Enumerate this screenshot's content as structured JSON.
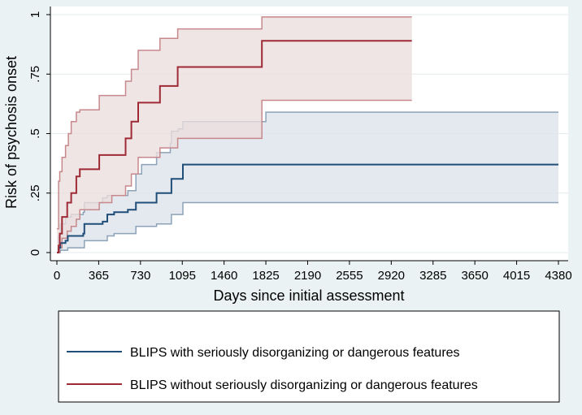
{
  "chart_data": {
    "type": "line",
    "title": "",
    "xlabel": "Days since initial assessment",
    "ylabel": "Risk of psychosis onset",
    "xlim": [
      0,
      4380
    ],
    "ylim": [
      0,
      1
    ],
    "x_ticks": [
      0,
      365,
      730,
      1095,
      1460,
      1825,
      2190,
      2555,
      2920,
      3285,
      3650,
      4015,
      4380
    ],
    "y_ticks": [
      {
        "value": 0,
        "label": "0"
      },
      {
        "value": 0.25,
        "label": ".25"
      },
      {
        "value": 0.5,
        "label": ".5"
      },
      {
        "value": 0.75,
        "label": ".75"
      },
      {
        "value": 1,
        "label": "1"
      }
    ],
    "grid": "horizontal",
    "legend_position": "bottom",
    "series": [
      {
        "name": "BLIPS with seriously disorganizing or dangerous features",
        "color": "#1f4e79",
        "band_color": "#dde3ea",
        "band_edge_color": "#8ca2b8",
        "step": [
          [
            0,
            0
          ],
          [
            15,
            0.02
          ],
          [
            30,
            0.04
          ],
          [
            75,
            0.05
          ],
          [
            95,
            0.07
          ],
          [
            125,
            0.07
          ],
          [
            230,
            0.08
          ],
          [
            240,
            0.12
          ],
          [
            400,
            0.13
          ],
          [
            440,
            0.16
          ],
          [
            500,
            0.17
          ],
          [
            620,
            0.18
          ],
          [
            690,
            0.21
          ],
          [
            870,
            0.25
          ],
          [
            1000,
            0.31
          ],
          [
            1100,
            0.37
          ],
          [
            4380,
            0.37
          ]
        ],
        "lower": [
          [
            0,
            0
          ],
          [
            30,
            0.01
          ],
          [
            95,
            0.02
          ],
          [
            240,
            0.05
          ],
          [
            440,
            0.07
          ],
          [
            500,
            0.08
          ],
          [
            690,
            0.11
          ],
          [
            870,
            0.12
          ],
          [
            1000,
            0.16
          ],
          [
            1100,
            0.21
          ],
          [
            4380,
            0.21
          ]
        ],
        "upper": [
          [
            0,
            0
          ],
          [
            15,
            0.07
          ],
          [
            30,
            0.12
          ],
          [
            75,
            0.15
          ],
          [
            125,
            0.16
          ],
          [
            230,
            0.17
          ],
          [
            240,
            0.21
          ],
          [
            400,
            0.23
          ],
          [
            440,
            0.24
          ],
          [
            620,
            0.26
          ],
          [
            690,
            0.33
          ],
          [
            740,
            0.37
          ],
          [
            870,
            0.42
          ],
          [
            990,
            0.46
          ],
          [
            1000,
            0.51
          ],
          [
            1060,
            0.52
          ],
          [
            1100,
            0.55
          ],
          [
            1825,
            0.59
          ],
          [
            4380,
            0.59
          ]
        ]
      },
      {
        "name": "BLIPS without seriously disorganizing or dangerous features",
        "color": "#9e2a35",
        "band_color": "#ecdede",
        "band_edge_color": "#c7888c",
        "step": [
          [
            0,
            0
          ],
          [
            15,
            0.03
          ],
          [
            25,
            0.08
          ],
          [
            45,
            0.15
          ],
          [
            90,
            0.21
          ],
          [
            125,
            0.25
          ],
          [
            170,
            0.32
          ],
          [
            200,
            0.35
          ],
          [
            370,
            0.41
          ],
          [
            600,
            0.48
          ],
          [
            650,
            0.55
          ],
          [
            710,
            0.63
          ],
          [
            900,
            0.7
          ],
          [
            1055,
            0.78
          ],
          [
            1790,
            0.89
          ],
          [
            3100,
            0.89
          ]
        ],
        "lower": [
          [
            0,
            0
          ],
          [
            25,
            0.02
          ],
          [
            45,
            0.06
          ],
          [
            90,
            0.09
          ],
          [
            125,
            0.11
          ],
          [
            170,
            0.14
          ],
          [
            200,
            0.18
          ],
          [
            370,
            0.21
          ],
          [
            480,
            0.24
          ],
          [
            600,
            0.28
          ],
          [
            650,
            0.33
          ],
          [
            710,
            0.4
          ],
          [
            900,
            0.44
          ],
          [
            1055,
            0.48
          ],
          [
            1790,
            0.64
          ],
          [
            3100,
            0.64
          ]
        ],
        "upper": [
          [
            0,
            0.1
          ],
          [
            15,
            0.3
          ],
          [
            25,
            0.34
          ],
          [
            45,
            0.4
          ],
          [
            75,
            0.45
          ],
          [
            100,
            0.5
          ],
          [
            125,
            0.55
          ],
          [
            170,
            0.59
          ],
          [
            200,
            0.6
          ],
          [
            370,
            0.66
          ],
          [
            600,
            0.72
          ],
          [
            650,
            0.77
          ],
          [
            710,
            0.85
          ],
          [
            900,
            0.9
          ],
          [
            1055,
            0.94
          ],
          [
            1790,
            0.99
          ],
          [
            3100,
            0.99
          ]
        ]
      }
    ]
  }
}
